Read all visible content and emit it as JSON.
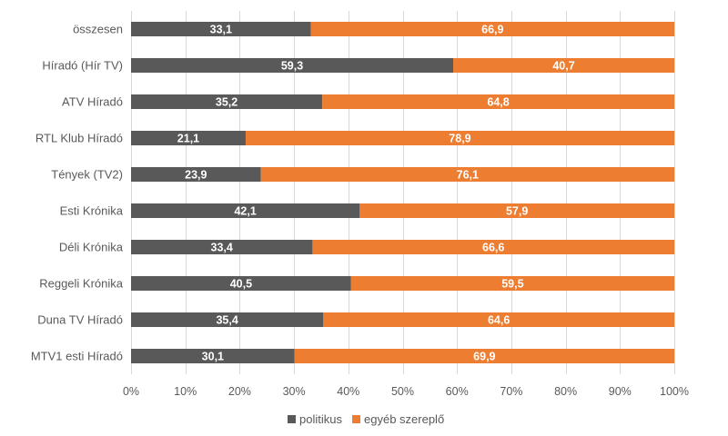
{
  "chart_data": {
    "type": "bar",
    "orientation": "horizontal",
    "stacked": "percent",
    "title": "",
    "xlabel": "",
    "ylabel": "",
    "xlim": [
      0,
      100
    ],
    "grid": true,
    "legend_position": "bottom",
    "categories": [
      "összesen",
      "Híradó (Hír TV)",
      "ATV Híradó",
      "RTL Klub Híradó",
      "Tények (TV2)",
      "Esti Krónika",
      "Déli Krónika",
      "Reggeli Krónika",
      "Duna TV Híradó",
      "MTV1 esti Híradó"
    ],
    "series": [
      {
        "name": "politikus",
        "color": "#595959",
        "values": [
          33.1,
          59.3,
          35.2,
          21.1,
          23.9,
          42.1,
          33.4,
          40.5,
          35.4,
          30.1
        ],
        "labels": [
          "33,1",
          "59,3",
          "35,2",
          "21,1",
          "23,9",
          "42,1",
          "33,4",
          "40,5",
          "35,4",
          "30,1"
        ]
      },
      {
        "name": "egyéb szereplő",
        "color": "#ED7D31",
        "values": [
          66.9,
          40.7,
          64.8,
          78.9,
          76.1,
          57.9,
          66.6,
          59.5,
          64.6,
          69.9
        ],
        "labels": [
          "66,9",
          "40,7",
          "64,8",
          "78,9",
          "76,1",
          "57,9",
          "66,6",
          "59,5",
          "64,6",
          "69,9"
        ]
      }
    ],
    "x_ticks": [
      "0%",
      "10%",
      "20%",
      "30%",
      "40%",
      "50%",
      "60%",
      "70%",
      "80%",
      "90%",
      "100%"
    ],
    "gridline_color": "#D9D9D9"
  }
}
